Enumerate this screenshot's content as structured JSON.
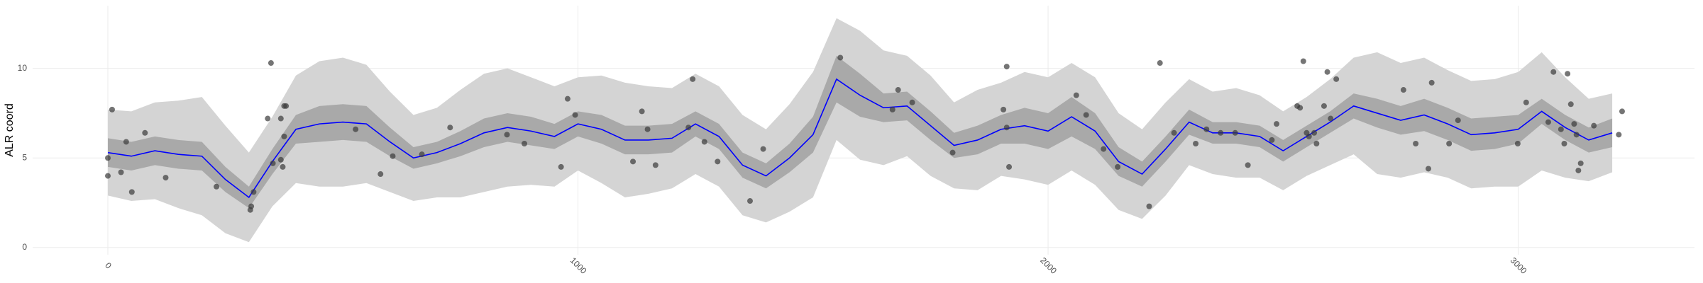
{
  "chart_data": {
    "type": "line",
    "y_label": "ALR coord",
    "xlim": [
      -160,
      3375
    ],
    "ylim": [
      -0.4,
      13.5
    ],
    "xticks": [
      0,
      1000,
      2000,
      3000
    ],
    "yticks": [
      0,
      5,
      10
    ],
    "grid": true,
    "x": [
      0,
      50,
      100,
      150,
      200,
      250,
      300,
      350,
      400,
      450,
      500,
      550,
      600,
      650,
      700,
      750,
      800,
      850,
      900,
      950,
      1000,
      1050,
      1100,
      1150,
      1200,
      1250,
      1300,
      1350,
      1400,
      1450,
      1500,
      1550,
      1600,
      1650,
      1700,
      1750,
      1800,
      1850,
      1900,
      1950,
      2000,
      2050,
      2100,
      2150,
      2200,
      2250,
      2300,
      2350,
      2400,
      2450,
      2500,
      2550,
      2600,
      2650,
      2700,
      2750,
      2800,
      2850,
      2900,
      2950,
      3000,
      3050,
      3100,
      3150,
      3200
    ],
    "bands": [
      {
        "color": "#d4d4d4",
        "lower": [
          2.9,
          2.6,
          2.7,
          2.2,
          1.8,
          0.8,
          0.3,
          2.3,
          3.6,
          3.4,
          3.4,
          3.6,
          3.1,
          2.6,
          2.8,
          2.8,
          3.1,
          3.4,
          3.5,
          3.4,
          4.3,
          3.6,
          2.8,
          3.0,
          3.3,
          4.1,
          3.4,
          1.8,
          1.4,
          2.0,
          2.8,
          6.0,
          4.9,
          4.6,
          5.1,
          4.0,
          3.3,
          3.2,
          4.0,
          3.8,
          3.5,
          4.3,
          3.5,
          2.1,
          1.6,
          2.9,
          4.6,
          4.1,
          3.9,
          3.9,
          3.2,
          4.0,
          4.6,
          5.2,
          4.1,
          3.9,
          4.2,
          3.9,
          3.3,
          3.4,
          3.4,
          4.3,
          3.9,
          3.7,
          4.2
        ],
        "upper": [
          7.7,
          7.6,
          8.1,
          8.2,
          8.4,
          6.8,
          5.3,
          7.3,
          9.6,
          10.4,
          10.6,
          10.2,
          8.7,
          7.4,
          7.8,
          8.8,
          9.7,
          10.0,
          9.5,
          9.0,
          9.5,
          9.6,
          9.2,
          9.0,
          8.9,
          9.7,
          9.0,
          7.4,
          6.6,
          8.0,
          9.8,
          12.8,
          12.1,
          11.0,
          10.7,
          9.6,
          8.1,
          8.8,
          9.2,
          9.8,
          9.5,
          10.3,
          9.5,
          7.5,
          6.6,
          8.1,
          9.4,
          8.7,
          8.9,
          8.5,
          7.6,
          8.4,
          9.4,
          10.6,
          10.9,
          10.3,
          10.6,
          9.9,
          9.3,
          9.4,
          9.8,
          10.9,
          9.5,
          8.3,
          8.6
        ]
      },
      {
        "color": "#a9a9a9",
        "lower": [
          4.5,
          4.3,
          4.6,
          4.4,
          4.3,
          3.1,
          2.2,
          4.1,
          5.8,
          5.9,
          6.0,
          5.9,
          5.1,
          4.4,
          4.7,
          5.1,
          5.6,
          5.9,
          5.7,
          5.5,
          6.2,
          5.8,
          5.2,
          5.2,
          5.3,
          6.2,
          5.5,
          3.9,
          3.3,
          4.2,
          5.3,
          8.1,
          7.3,
          7.0,
          7.1,
          6.0,
          5.0,
          5.2,
          5.8,
          5.8,
          5.5,
          6.2,
          5.5,
          4.0,
          3.4,
          4.8,
          6.3,
          5.8,
          5.8,
          5.6,
          4.8,
          5.6,
          6.4,
          7.2,
          6.7,
          6.3,
          6.5,
          6.0,
          5.4,
          5.5,
          5.8,
          6.9,
          6.0,
          5.3,
          5.6
        ],
        "upper": [
          6.1,
          5.9,
          6.2,
          6.0,
          5.9,
          4.5,
          3.4,
          5.5,
          7.4,
          7.9,
          8.0,
          7.9,
          6.7,
          5.6,
          5.9,
          6.5,
          7.2,
          7.5,
          7.3,
          6.9,
          7.6,
          7.4,
          6.8,
          6.8,
          6.9,
          7.6,
          6.9,
          5.3,
          4.7,
          5.8,
          7.3,
          10.7,
          9.7,
          8.6,
          8.7,
          7.6,
          6.4,
          6.8,
          7.4,
          7.8,
          7.5,
          8.4,
          7.5,
          5.6,
          4.8,
          6.2,
          7.7,
          7.0,
          7.0,
          6.8,
          6.0,
          6.8,
          7.6,
          8.6,
          8.3,
          7.9,
          8.3,
          7.8,
          7.2,
          7.3,
          7.4,
          8.3,
          7.4,
          6.7,
          7.2
        ]
      }
    ],
    "series": [
      {
        "color": "#0000ff",
        "values": [
          5.3,
          5.1,
          5.4,
          5.2,
          5.1,
          3.8,
          2.8,
          4.8,
          6.6,
          6.9,
          7.0,
          6.9,
          5.9,
          5.0,
          5.3,
          5.8,
          6.4,
          6.7,
          6.5,
          6.2,
          6.9,
          6.6,
          6.0,
          6.0,
          6.1,
          6.9,
          6.2,
          4.6,
          4.0,
          5.0,
          6.3,
          9.4,
          8.5,
          7.8,
          7.9,
          6.8,
          5.7,
          6.0,
          6.6,
          6.8,
          6.5,
          7.3,
          6.5,
          4.8,
          4.1,
          5.5,
          7.0,
          6.4,
          6.4,
          6.2,
          5.4,
          6.2,
          7.0,
          7.9,
          7.5,
          7.1,
          7.4,
          6.9,
          6.3,
          6.4,
          6.6,
          7.6,
          6.7,
          6.0,
          6.4
        ]
      }
    ],
    "points": {
      "color": "#3a3a3a",
      "x": [
        0,
        0,
        9,
        28,
        39,
        51,
        79,
        123,
        231,
        303,
        305,
        310,
        340,
        347,
        351,
        368,
        368,
        375,
        375,
        379,
        372,
        527,
        580,
        606,
        668,
        728,
        849,
        886,
        964,
        978,
        994,
        1117,
        1136,
        1148,
        1165,
        1235,
        1244,
        1269,
        1297,
        1366,
        1394,
        1558,
        1669,
        1681,
        1711,
        1797,
        1905,
        1912,
        1917,
        1912,
        2060,
        2081,
        2118,
        2148,
        2215,
        2238,
        2268,
        2314,
        2337,
        2367,
        2398,
        2425,
        2476,
        2486,
        2530,
        2536,
        2543,
        2550,
        2555,
        2566,
        2571,
        2587,
        2594,
        2601,
        2613,
        2756,
        2782,
        2809,
        2816,
        2853,
        2872,
        2999,
        3017,
        3064,
        3075,
        3091,
        3098,
        3105,
        3112,
        3119,
        3124,
        3133,
        3128,
        3161,
        3214,
        3221
      ],
      "y": [
        5.0,
        4.0,
        7.7,
        4.2,
        5.9,
        3.1,
        6.4,
        3.9,
        3.4,
        2.1,
        2.3,
        3.1,
        7.2,
        10.3,
        4.7,
        4.9,
        7.2,
        6.2,
        7.9,
        7.9,
        4.5,
        6.6,
        4.1,
        5.1,
        5.2,
        6.7,
        6.3,
        5.8,
        4.5,
        8.3,
        7.4,
        4.8,
        7.6,
        6.6,
        4.6,
        6.7,
        9.4,
        5.9,
        4.8,
        2.6,
        5.5,
        10.6,
        7.7,
        8.8,
        8.1,
        5.3,
        7.7,
        10.1,
        4.5,
        6.7,
        8.5,
        7.4,
        5.5,
        4.5,
        2.3,
        10.3,
        6.4,
        5.8,
        6.6,
        6.4,
        6.4,
        4.6,
        6.0,
        6.9,
        7.9,
        7.8,
        10.4,
        6.4,
        6.2,
        6.4,
        5.8,
        7.9,
        9.8,
        7.2,
        9.4,
        8.8,
        5.8,
        4.4,
        9.2,
        5.8,
        7.1,
        5.8,
        8.1,
        7.0,
        9.8,
        6.6,
        5.8,
        9.7,
        8.0,
        6.9,
        6.3,
        4.7,
        4.3,
        6.8,
        6.3,
        7.6
      ]
    }
  }
}
